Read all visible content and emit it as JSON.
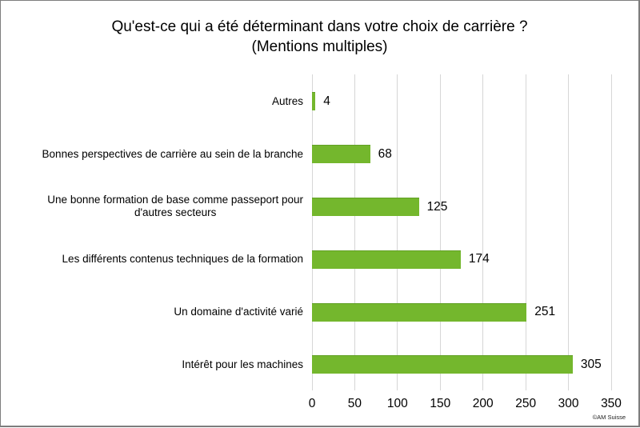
{
  "chart_data": {
    "type": "bar",
    "orientation": "horizontal",
    "title": "Qu'est-ce qui a été déterminant dans votre choix de carrière ?",
    "subtitle": "(Mentions multiples)",
    "categories": [
      "Autres",
      "Bonnes perspectives de carrière au sein de la branche",
      "Une bonne formation de base comme passeport pour\nd'autres secteurs",
      "Les différents contenus techniques de la formation",
      "Un domaine d'activité varié",
      "Intérêt pour les machines"
    ],
    "values": [
      4,
      68,
      125,
      174,
      251,
      305
    ],
    "data_labels": [
      4,
      68,
      125,
      174,
      251,
      305
    ],
    "xlabel": "",
    "ylabel": "",
    "xlim": [
      0,
      350
    ],
    "xticks": [
      0,
      50,
      100,
      150,
      200,
      250,
      300,
      350
    ],
    "grid": "vertical-only",
    "legend": "none",
    "bar_color": "#74b72d",
    "gridline_color": "#d6d6d6"
  },
  "footer": {
    "copyright": "©AM Suisse"
  }
}
